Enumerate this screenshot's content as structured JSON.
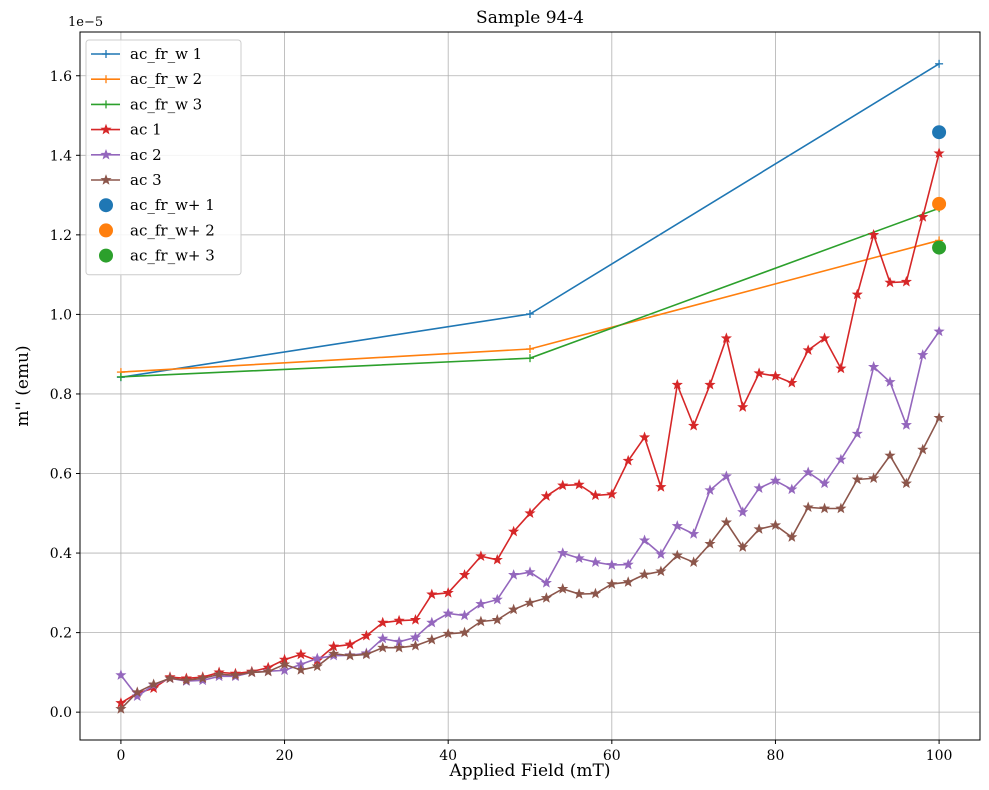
{
  "chart_data": {
    "type": "line",
    "title": "Sample 94-4",
    "xlabel": "Applied Field (mT)",
    "ylabel": "m'' (emu)",
    "y_offset_label": "1e−5",
    "xlim": [
      -5,
      105
    ],
    "ylim": [
      -0.07,
      1.71
    ],
    "x_ticks": [
      0,
      20,
      40,
      60,
      80,
      100
    ],
    "x_tick_labels": [
      "0",
      "20",
      "40",
      "60",
      "80",
      "100"
    ],
    "y_ticks": [
      0.0,
      0.2,
      0.4,
      0.6,
      0.8,
      1.0,
      1.2,
      1.4,
      1.6
    ],
    "y_tick_labels": [
      "0.0",
      "0.2",
      "0.4",
      "0.6",
      "0.8",
      "1.0",
      "1.2",
      "1.4",
      "1.6"
    ],
    "grid": true,
    "legend_position": "top-left",
    "colors": {
      "blue": "#1f77b4",
      "orange": "#ff7f0e",
      "green": "#2ca02c",
      "red": "#d62728",
      "purple": "#9467bd",
      "brown": "#8c564b"
    },
    "series": [
      {
        "name": "ac_fr_w 1",
        "kind": "line",
        "marker": "plus",
        "color": "#1f77b4",
        "x": [
          0,
          50,
          100
        ],
        "y": [
          0.842,
          1.001,
          1.63
        ]
      },
      {
        "name": "ac_fr_w 2",
        "kind": "line",
        "marker": "plus",
        "color": "#ff7f0e",
        "x": [
          0,
          50,
          100
        ],
        "y": [
          0.855,
          0.913,
          1.186
        ]
      },
      {
        "name": "ac_fr_w 3",
        "kind": "line",
        "marker": "plus",
        "color": "#2ca02c",
        "x": [
          0,
          50,
          100
        ],
        "y": [
          0.843,
          0.89,
          1.267
        ]
      },
      {
        "name": "ac 1",
        "kind": "line",
        "marker": "star",
        "color": "#d62728",
        "x": [
          0,
          2,
          4,
          6,
          8,
          10,
          12,
          14,
          16,
          18,
          20,
          22,
          24,
          26,
          28,
          30,
          32,
          34,
          36,
          38,
          40,
          42,
          44,
          46,
          48,
          50,
          52,
          54,
          56,
          58,
          60,
          62,
          64,
          66,
          68,
          70,
          72,
          74,
          76,
          78,
          80,
          82,
          84,
          86,
          88,
          90,
          92,
          94,
          96,
          98,
          100
        ],
        "y": [
          0.023,
          0.048,
          0.06,
          0.088,
          0.085,
          0.088,
          0.1,
          0.097,
          0.102,
          0.112,
          0.132,
          0.145,
          0.13,
          0.165,
          0.17,
          0.192,
          0.225,
          0.23,
          0.232,
          0.296,
          0.3,
          0.345,
          0.392,
          0.383,
          0.454,
          0.5,
          0.543,
          0.57,
          0.572,
          0.545,
          0.548,
          0.632,
          0.691,
          0.566,
          0.823,
          0.72,
          0.823,
          0.94,
          0.767,
          0.852,
          0.845,
          0.828,
          0.91,
          0.94,
          0.864,
          1.05,
          1.2,
          1.08,
          1.082,
          1.245,
          1.405
        ]
      },
      {
        "name": "ac 2",
        "kind": "line",
        "marker": "star",
        "color": "#9467bd",
        "x": [
          0,
          2,
          4,
          6,
          8,
          10,
          12,
          14,
          16,
          18,
          20,
          22,
          24,
          26,
          28,
          30,
          32,
          34,
          36,
          38,
          40,
          42,
          44,
          46,
          48,
          50,
          52,
          54,
          56,
          58,
          60,
          62,
          64,
          66,
          68,
          70,
          72,
          74,
          76,
          78,
          80,
          82,
          84,
          86,
          88,
          90,
          92,
          94,
          96,
          98,
          100
        ],
        "y": [
          0.093,
          0.04,
          0.068,
          0.085,
          0.078,
          0.08,
          0.09,
          0.09,
          0.1,
          0.103,
          0.105,
          0.12,
          0.135,
          0.142,
          0.143,
          0.148,
          0.185,
          0.177,
          0.188,
          0.225,
          0.248,
          0.243,
          0.272,
          0.283,
          0.345,
          0.352,
          0.325,
          0.4,
          0.387,
          0.377,
          0.37,
          0.371,
          0.432,
          0.397,
          0.468,
          0.448,
          0.558,
          0.593,
          0.503,
          0.563,
          0.582,
          0.56,
          0.603,
          0.575,
          0.635,
          0.7,
          0.868,
          0.83,
          0.722,
          0.898,
          0.957
        ]
      },
      {
        "name": "ac 3",
        "kind": "line",
        "marker": "star",
        "color": "#8c564b",
        "x": [
          0,
          2,
          4,
          6,
          8,
          10,
          12,
          14,
          16,
          18,
          20,
          22,
          24,
          26,
          28,
          30,
          32,
          34,
          36,
          38,
          40,
          42,
          44,
          46,
          48,
          50,
          52,
          54,
          56,
          58,
          60,
          62,
          64,
          66,
          68,
          70,
          72,
          74,
          76,
          78,
          80,
          82,
          84,
          86,
          88,
          90,
          92,
          94,
          96,
          98,
          100
        ],
        "y": [
          0.008,
          0.05,
          0.07,
          0.085,
          0.08,
          0.085,
          0.095,
          0.093,
          0.1,
          0.102,
          0.12,
          0.106,
          0.115,
          0.147,
          0.142,
          0.145,
          0.162,
          0.162,
          0.167,
          0.182,
          0.197,
          0.2,
          0.228,
          0.232,
          0.258,
          0.275,
          0.287,
          0.31,
          0.297,
          0.298,
          0.322,
          0.327,
          0.346,
          0.354,
          0.394,
          0.377,
          0.423,
          0.477,
          0.415,
          0.46,
          0.47,
          0.44,
          0.515,
          0.512,
          0.512,
          0.585,
          0.588,
          0.645,
          0.575,
          0.66,
          0.74
        ]
      },
      {
        "name": "ac_fr_w+ 1",
        "kind": "scatter",
        "marker": "circle",
        "color": "#1f77b4",
        "x": [
          100
        ],
        "y": [
          1.458
        ]
      },
      {
        "name": "ac_fr_w+ 2",
        "kind": "scatter",
        "marker": "circle",
        "color": "#ff7f0e",
        "x": [
          100
        ],
        "y": [
          1.278
        ]
      },
      {
        "name": "ac_fr_w+ 3",
        "kind": "scatter",
        "marker": "circle",
        "color": "#2ca02c",
        "x": [
          100
        ],
        "y": [
          1.168
        ]
      }
    ]
  }
}
